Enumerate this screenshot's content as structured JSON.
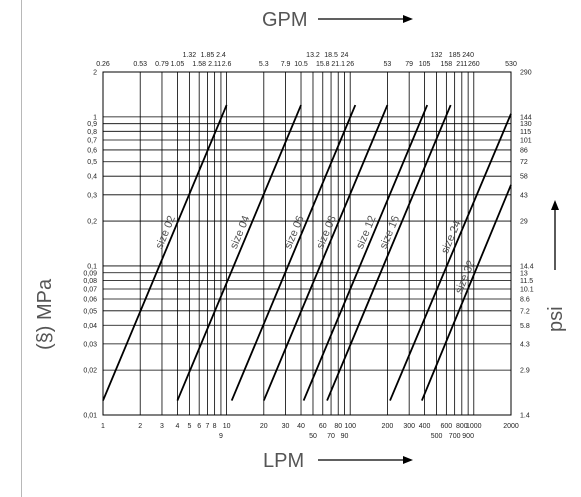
{
  "chart_data": {
    "type": "line",
    "scale": "log-log",
    "title_top": "GPM",
    "xlabel": "LPM",
    "ylabel_left": "(§) MPa",
    "ylabel_right": "psi",
    "colors": {
      "line": "#000000",
      "grid": "#000000",
      "label": "#555555"
    },
    "xlim": [
      1,
      2000
    ],
    "ylim": [
      0.01,
      2
    ],
    "x_ticks": [
      {
        "v": 1,
        "label": "1",
        "row": 1
      },
      {
        "v": 2,
        "label": "2",
        "row": 1
      },
      {
        "v": 3,
        "label": "3",
        "row": 1
      },
      {
        "v": 4,
        "label": "4",
        "row": 1
      },
      {
        "v": 5,
        "label": "5",
        "row": 1
      },
      {
        "v": 6,
        "label": "6",
        "row": 1
      },
      {
        "v": 7,
        "label": "7",
        "row": 1
      },
      {
        "v": 8,
        "label": "8",
        "row": 1
      },
      {
        "v": 9,
        "label": "9",
        "row": 2
      },
      {
        "v": 10,
        "label": "10",
        "row": 1
      },
      {
        "v": 20,
        "label": "20",
        "row": 1
      },
      {
        "v": 30,
        "label": "30",
        "row": 1
      },
      {
        "v": 40,
        "label": "40",
        "row": 1
      },
      {
        "v": 50,
        "label": "50",
        "row": 2
      },
      {
        "v": 60,
        "label": "60",
        "row": 1
      },
      {
        "v": 70,
        "label": "70",
        "row": 2
      },
      {
        "v": 80,
        "label": "80",
        "row": 1
      },
      {
        "v": 90,
        "label": "90",
        "row": 2
      },
      {
        "v": 100,
        "label": "100",
        "row": 1
      },
      {
        "v": 200,
        "label": "200",
        "row": 1
      },
      {
        "v": 300,
        "label": "300",
        "row": 1
      },
      {
        "v": 400,
        "label": "400",
        "row": 1
      },
      {
        "v": 500,
        "label": "500",
        "row": 2
      },
      {
        "v": 600,
        "label": "600",
        "row": 1
      },
      {
        "v": 700,
        "label": "700",
        "row": 2
      },
      {
        "v": 800,
        "label": "800",
        "row": 1
      },
      {
        "v": 900,
        "label": "900",
        "row": 2
      },
      {
        "v": 1000,
        "label": "1000",
        "row": 1
      },
      {
        "v": 2000,
        "label": "2000",
        "row": 1
      }
    ],
    "gpm_ticks": [
      {
        "v": 1,
        "label": "0.26",
        "row": 1
      },
      {
        "v": 2,
        "label": "0.53",
        "row": 1
      },
      {
        "v": 3,
        "label": "0.79",
        "row": 1
      },
      {
        "v": 4,
        "label": "1.05",
        "row": 1
      },
      {
        "v": 5,
        "label": "1.32",
        "row": 2
      },
      {
        "v": 6,
        "label": "1.58",
        "row": 1
      },
      {
        "v": 7,
        "label": "1.85",
        "row": 2
      },
      {
        "v": 8,
        "label": "2.11",
        "row": 1
      },
      {
        "v": 9,
        "label": "2.4",
        "row": 2
      },
      {
        "v": 10,
        "label": "2.6",
        "row": 1
      },
      {
        "v": 20,
        "label": "5.3",
        "row": 1
      },
      {
        "v": 30,
        "label": "7.9",
        "row": 1
      },
      {
        "v": 40,
        "label": "10.5",
        "row": 1
      },
      {
        "v": 50,
        "label": "13.2",
        "row": 2
      },
      {
        "v": 60,
        "label": "15.8",
        "row": 1
      },
      {
        "v": 70,
        "label": "18.5",
        "row": 2
      },
      {
        "v": 80,
        "label": "21.1",
        "row": 1
      },
      {
        "v": 90,
        "label": "24",
        "row": 2
      },
      {
        "v": 100,
        "label": "26",
        "row": 1
      },
      {
        "v": 200,
        "label": "53",
        "row": 1
      },
      {
        "v": 300,
        "label": "79",
        "row": 1
      },
      {
        "v": 400,
        "label": "105",
        "row": 1
      },
      {
        "v": 500,
        "label": "132",
        "row": 2
      },
      {
        "v": 600,
        "label": "158",
        "row": 1
      },
      {
        "v": 700,
        "label": "185",
        "row": 2
      },
      {
        "v": 800,
        "label": "211",
        "row": 1
      },
      {
        "v": 900,
        "label": "240",
        "row": 2
      },
      {
        "v": 1000,
        "label": "260",
        "row": 1
      },
      {
        "v": 2000,
        "label": "530",
        "row": 1
      }
    ],
    "y_ticks": [
      {
        "v": 0.01,
        "label": "0,01",
        "psi": "1.4"
      },
      {
        "v": 0.02,
        "label": "0,02",
        "psi": "2.9"
      },
      {
        "v": 0.03,
        "label": "0,03",
        "psi": "4.3"
      },
      {
        "v": 0.04,
        "label": "0,04",
        "psi": "5.8"
      },
      {
        "v": 0.05,
        "label": "0,05",
        "psi": "7.2"
      },
      {
        "v": 0.06,
        "label": "0,06",
        "psi": "8.6"
      },
      {
        "v": 0.07,
        "label": "0,07",
        "psi": "10.1"
      },
      {
        "v": 0.08,
        "label": "0,08",
        "psi": "11.5"
      },
      {
        "v": 0.09,
        "label": "0,09",
        "psi": "13"
      },
      {
        "v": 0.1,
        "label": "0,1",
        "psi": "14.4"
      },
      {
        "v": 0.2,
        "label": "0,2",
        "psi": "29"
      },
      {
        "v": 0.3,
        "label": "0,3",
        "psi": "43"
      },
      {
        "v": 0.4,
        "label": "0,4",
        "psi": "58"
      },
      {
        "v": 0.5,
        "label": "0,5",
        "psi": "72"
      },
      {
        "v": 0.6,
        "label": "0,6",
        "psi": "86"
      },
      {
        "v": 0.7,
        "label": "0,7",
        "psi": "101"
      },
      {
        "v": 0.8,
        "label": "0,8",
        "psi": "115"
      },
      {
        "v": 0.9,
        "label": "0,9",
        "psi": "130"
      },
      {
        "v": 1,
        "label": "1",
        "psi": "144"
      },
      {
        "v": 2,
        "label": "2",
        "psi": "290"
      }
    ],
    "series": [
      {
        "name": "size 02",
        "points": [
          [
            1,
            0.0125
          ],
          [
            10,
            1.2
          ]
        ]
      },
      {
        "name": "size 04",
        "points": [
          [
            4,
            0.0125
          ],
          [
            40,
            1.2
          ]
        ]
      },
      {
        "name": "size 06",
        "points": [
          [
            11,
            0.0125
          ],
          [
            110,
            1.2
          ]
        ]
      },
      {
        "name": "size 08",
        "points": [
          [
            20,
            0.0125
          ],
          [
            200,
            1.2
          ]
        ]
      },
      {
        "name": "size 12",
        "points": [
          [
            42,
            0.0125
          ],
          [
            420,
            1.2
          ]
        ]
      },
      {
        "name": "size 16",
        "points": [
          [
            65,
            0.0125
          ],
          [
            650,
            1.2
          ]
        ]
      },
      {
        "name": "size 24",
        "points": [
          [
            210,
            0.0125
          ],
          [
            2000,
            1.05
          ]
        ]
      },
      {
        "name": "size 32",
        "points": [
          [
            380,
            0.0125
          ],
          [
            2000,
            0.35
          ]
        ]
      }
    ]
  }
}
